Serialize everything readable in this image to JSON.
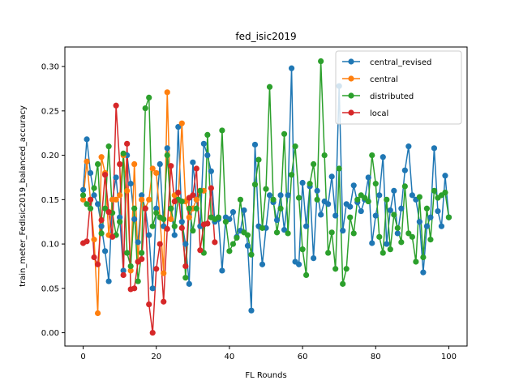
{
  "chart_data": {
    "type": "line",
    "title": "fed_isic2019",
    "xlabel": "FL Rounds",
    "ylabel": "train_meter_FedIsic2019_balanced_accuracy",
    "xlim": [
      -5,
      105
    ],
    "ylim": [
      -0.015,
      0.322
    ],
    "xticks": [
      0,
      20,
      40,
      60,
      80,
      100
    ],
    "yticks": [
      0.0,
      0.05,
      0.1,
      0.15,
      0.2,
      0.25,
      0.3
    ],
    "ytick_labels": [
      "0.00",
      "0.05",
      "0.10",
      "0.15",
      "0.20",
      "0.25",
      "0.30"
    ],
    "legend_position": "top-right",
    "grid": false,
    "series": [
      {
        "name": "central_revised",
        "color": "#1f77b4",
        "x": [
          0,
          1,
          2,
          3,
          4,
          5,
          6,
          7,
          8,
          9,
          10,
          11,
          12,
          13,
          14,
          15,
          16,
          17,
          18,
          19,
          20,
          21,
          22,
          23,
          24,
          25,
          26,
          27,
          28,
          29,
          30,
          31,
          32,
          33,
          34,
          35,
          36,
          37,
          38,
          39,
          40,
          41,
          42,
          43,
          44,
          45,
          46,
          47,
          48,
          49,
          50,
          51,
          52,
          53,
          54,
          55,
          56,
          57,
          58,
          59,
          60,
          61,
          62,
          63,
          64,
          65,
          66,
          67,
          68,
          69,
          70,
          71,
          72,
          73,
          74,
          75,
          76,
          77,
          78,
          79,
          80,
          81,
          82,
          83,
          84,
          85,
          86,
          87,
          88,
          89,
          90,
          91,
          92,
          93,
          94,
          95,
          96,
          97,
          98,
          99,
          100
        ],
        "values": [
          0.161,
          0.218,
          0.18,
          0.155,
          0.145,
          0.12,
          0.092,
          0.058,
          0.15,
          0.175,
          0.13,
          0.07,
          0.2,
          0.168,
          0.128,
          0.102,
          0.155,
          0.14,
          0.11,
          0.05,
          0.14,
          0.19,
          0.12,
          0.208,
          0.14,
          0.11,
          0.232,
          0.125,
          0.1,
          0.055,
          0.192,
          0.15,
          0.12,
          0.213,
          0.2,
          0.182,
          0.125,
          0.128,
          0.07,
          0.13,
          0.128,
          0.136,
          0.108,
          0.115,
          0.138,
          0.098,
          0.025,
          0.212,
          0.12,
          0.077,
          0.118,
          0.155,
          0.147,
          0.127,
          0.155,
          0.116,
          0.155,
          0.298,
          0.08,
          0.077,
          0.169,
          0.12,
          0.165,
          0.084,
          0.16,
          0.133,
          0.148,
          0.145,
          0.176,
          0.132,
          0.278,
          0.115,
          0.145,
          0.142,
          0.166,
          0.147,
          0.137,
          0.15,
          0.175,
          0.101,
          0.132,
          0.155,
          0.198,
          0.1,
          0.138,
          0.16,
          0.112,
          0.14,
          0.183,
          0.21,
          0.155,
          0.15,
          0.125,
          0.068,
          0.12,
          0.13,
          0.208,
          0.137,
          0.12,
          0.177,
          0.13
        ]
      },
      {
        "name": "central",
        "color": "#ff7f0e",
        "x": [
          0,
          1,
          2,
          3,
          4,
          5,
          6,
          7,
          8,
          9,
          10,
          11,
          12,
          13,
          14,
          15,
          16,
          17,
          18,
          19,
          20,
          21,
          22,
          23,
          24,
          25,
          26,
          27,
          28,
          29,
          30,
          31,
          32,
          33
        ],
        "values": [
          0.15,
          0.193,
          0.15,
          0.105,
          0.022,
          0.198,
          0.18,
          0.11,
          0.15,
          0.15,
          0.155,
          0.2,
          0.16,
          0.07,
          0.19,
          0.08,
          0.15,
          0.14,
          0.15,
          0.185,
          0.18,
          0.13,
          0.067,
          0.271,
          0.128,
          0.155,
          0.15,
          0.236,
          0.148,
          0.13,
          0.14,
          0.15,
          0.16,
          0.16
        ]
      },
      {
        "name": "distributed",
        "color": "#2ca02c",
        "x": [
          0,
          1,
          2,
          3,
          4,
          5,
          6,
          7,
          8,
          9,
          10,
          11,
          12,
          13,
          14,
          15,
          16,
          17,
          18,
          19,
          20,
          21,
          22,
          23,
          24,
          25,
          26,
          27,
          28,
          29,
          30,
          31,
          32,
          33,
          34,
          35,
          36,
          37,
          38,
          39,
          40,
          41,
          42,
          43,
          44,
          45,
          46,
          47,
          48,
          49,
          50,
          51,
          52,
          53,
          54,
          55,
          56,
          57,
          58,
          59,
          60,
          61,
          62,
          63,
          64,
          65,
          66,
          67,
          68,
          69,
          70,
          71,
          72,
          73,
          74,
          75,
          76,
          77,
          78,
          79,
          80,
          81,
          82,
          83,
          84,
          85,
          86,
          87,
          88,
          89,
          90,
          91,
          92,
          93,
          94,
          95,
          96,
          97,
          98,
          99,
          100
        ],
        "values": [
          0.155,
          0.145,
          0.14,
          0.163,
          0.19,
          0.112,
          0.14,
          0.21,
          0.135,
          0.11,
          0.125,
          0.202,
          0.09,
          0.075,
          0.14,
          0.058,
          0.09,
          0.253,
          0.265,
          0.12,
          0.135,
          0.13,
          0.128,
          0.2,
          0.14,
          0.12,
          0.15,
          0.148,
          0.062,
          0.14,
          0.115,
          0.14,
          0.16,
          0.09,
          0.223,
          0.13,
          0.128,
          0.13,
          0.228,
          0.125,
          0.092,
          0.1,
          0.107,
          0.15,
          0.113,
          0.11,
          0.088,
          0.167,
          0.195,
          0.118,
          0.162,
          0.277,
          0.15,
          0.113,
          0.14,
          0.224,
          0.112,
          0.178,
          0.21,
          0.152,
          0.094,
          0.065,
          0.168,
          0.19,
          0.15,
          0.306,
          0.2,
          0.09,
          0.113,
          0.072,
          0.185,
          0.055,
          0.072,
          0.13,
          0.112,
          0.15,
          0.155,
          0.152,
          0.148,
          0.2,
          0.168,
          0.108,
          0.09,
          0.15,
          0.094,
          0.133,
          0.118,
          0.102,
          0.165,
          0.112,
          0.108,
          0.08,
          0.153,
          0.085,
          0.14,
          0.105,
          0.16,
          0.152,
          0.155,
          0.158,
          0.13
        ]
      },
      {
        "name": "local",
        "color": "#d62728",
        "x": [
          0,
          1,
          2,
          3,
          4,
          5,
          6,
          7,
          8,
          9,
          10,
          11,
          12,
          13,
          14,
          15,
          16,
          17,
          18,
          19,
          20,
          21,
          22,
          23,
          24,
          25,
          26,
          27,
          28,
          29,
          30,
          31,
          32,
          33,
          34,
          35,
          36
        ],
        "values": [
          0.101,
          0.103,
          0.15,
          0.085,
          0.077,
          0.127,
          0.178,
          0.136,
          0.108,
          0.256,
          0.19,
          0.065,
          0.213,
          0.049,
          0.05,
          0.08,
          0.083,
          0.14,
          0.032,
          0.0,
          0.072,
          0.1,
          0.035,
          0.117,
          0.188,
          0.148,
          0.158,
          0.118,
          0.075,
          0.152,
          0.155,
          0.185,
          0.093,
          0.122,
          0.123,
          0.163,
          0.102
        ]
      }
    ]
  }
}
